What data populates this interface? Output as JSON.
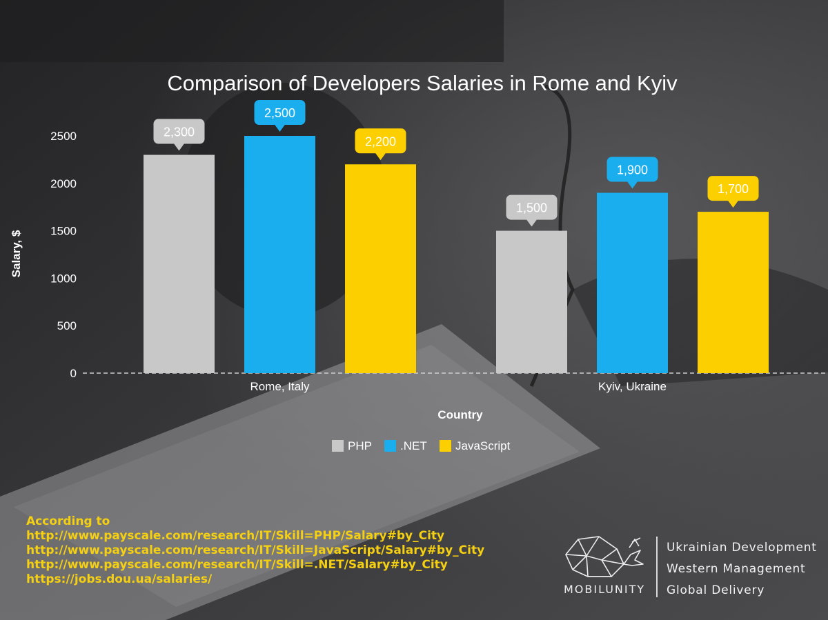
{
  "chart_data": {
    "type": "bar",
    "title": "Comparison of Developers Salaries in Rome and Kyiv",
    "xlabel": "Country",
    "ylabel": "Salary, $",
    "categories": [
      "Rome, Italy",
      "Kyiv, Ukraine"
    ],
    "series": [
      {
        "name": "PHP",
        "values": [
          2300,
          1500
        ],
        "color": "#c8c8c8"
      },
      {
        "name": ".NET",
        "values": [
          2500,
          1900
        ],
        "color": "#1aaeee"
      },
      {
        "name": "JavaScript",
        "values": [
          2200,
          1700
        ],
        "color": "#fcd000"
      }
    ],
    "data_labels": [
      [
        "2,300",
        "1,500"
      ],
      [
        "2,500",
        "1,900"
      ],
      [
        "2,200",
        "1,700"
      ]
    ],
    "ylim": [
      0,
      2500
    ],
    "yticks": [
      0,
      500,
      1000,
      1500,
      2000,
      2500
    ],
    "grid": false,
    "legend": "bottom"
  },
  "sources": {
    "heading": "According to",
    "links": [
      "http://www.payscale.com/research/IT/Skill=PHP/Salary#by_City",
      "http://www.payscale.com/research/IT/Skill=JavaScript/Salary#by_City",
      "http://www.payscale.com/research/IT/Skill=.NET/Salary#by_City",
      "https://jobs.dou.ua/salaries/"
    ]
  },
  "brand": {
    "name": "MOBILUNITY",
    "logo_icon": "whale-logo-icon",
    "taglines": [
      "Ukrainian Development",
      "Western Management",
      "Global Delivery"
    ]
  }
}
